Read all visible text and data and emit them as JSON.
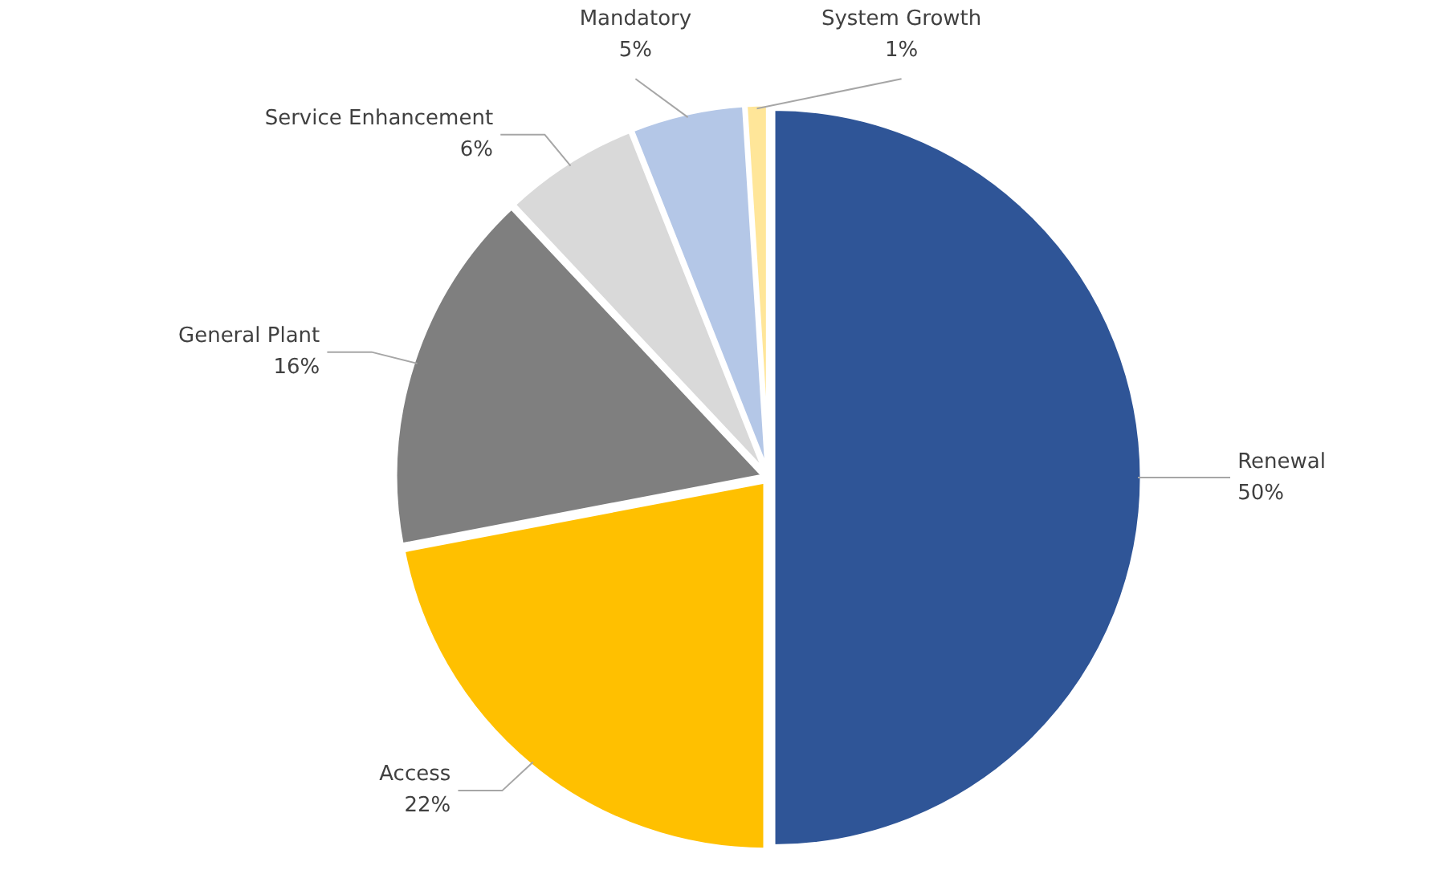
{
  "chart_data": {
    "type": "pie",
    "categories": [
      "Renewal",
      "Access",
      "General Plant",
      "Service Enhancement",
      "Mandatory",
      "System Growth"
    ],
    "values": [
      50,
      22,
      16,
      6,
      5,
      1
    ],
    "colors": [
      "#2f5597",
      "#ffc000",
      "#7f7f7f",
      "#d9d9d9",
      "#b4c7e7",
      "#ffe699"
    ],
    "value_labels": [
      "50%",
      "22%",
      "16%",
      "6%",
      "5%",
      "1%"
    ]
  }
}
